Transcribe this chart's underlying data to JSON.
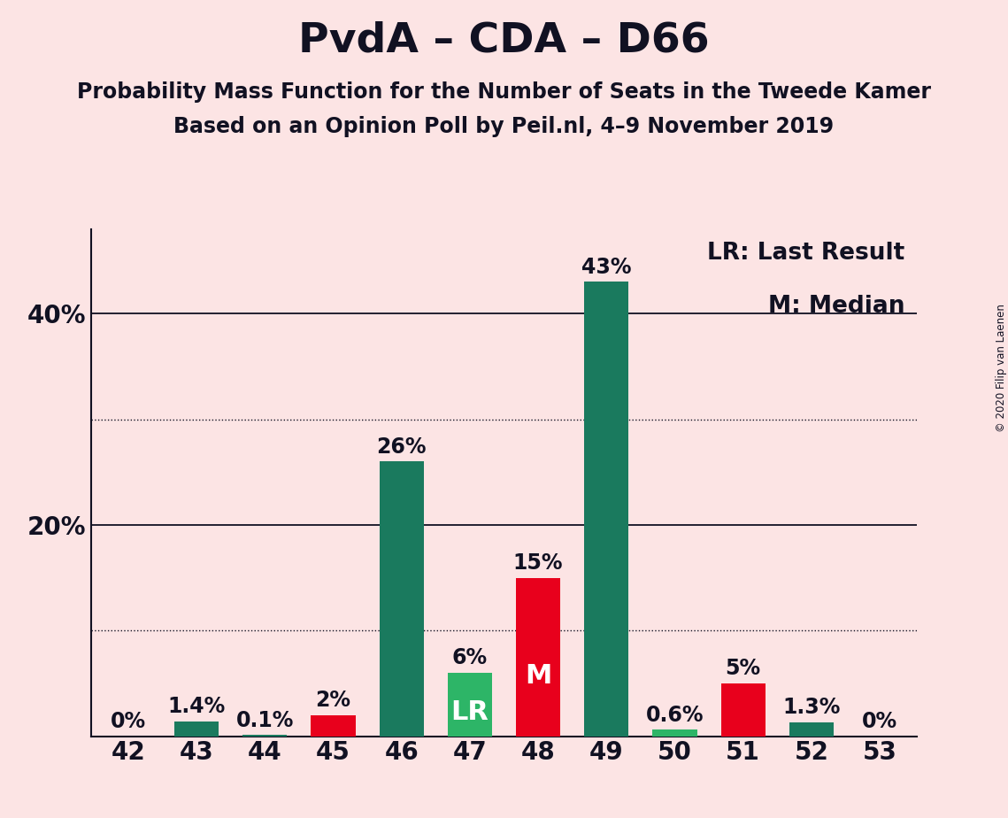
{
  "title": "PvdA – CDA – D66",
  "subtitle1": "Probability Mass Function for the Number of Seats in the Tweede Kamer",
  "subtitle2": "Based on an Opinion Poll by Peil.nl, 4–9 November 2019",
  "copyright": "© 2020 Filip van Laenen",
  "legend_lr": "LR: Last Result",
  "legend_m": "M: Median",
  "categories": [
    42,
    43,
    44,
    45,
    46,
    47,
    48,
    49,
    50,
    51,
    52,
    53
  ],
  "values": [
    0.0,
    1.4,
    0.1,
    2.0,
    26.0,
    6.0,
    15.0,
    43.0,
    0.6,
    5.0,
    1.3,
    0.0
  ],
  "labels": [
    "0%",
    "1.4%",
    "0.1%",
    "2%",
    "26%",
    "6%",
    "15%",
    "43%",
    "0.6%",
    "5%",
    "1.3%",
    "0%"
  ],
  "bar_colors": [
    "#1a7a5e",
    "#1a7a5e",
    "#1a7a5e",
    "#e8001c",
    "#1a7a5e",
    "#2db567",
    "#e8001c",
    "#1a7a5e",
    "#2db567",
    "#e8001c",
    "#1a7a5e",
    "#1a7a5e"
  ],
  "lr_index": 5,
  "median_index": 6,
  "background_color": "#fce4e4",
  "ylim": [
    0,
    48
  ],
  "yticks": [
    20,
    40
  ],
  "ytick_labels": [
    "20%",
    "40%"
  ],
  "grid_solid": [
    20,
    40
  ],
  "grid_dotted": [
    10,
    30
  ],
  "bar_width": 0.65,
  "title_fontsize": 34,
  "subtitle_fontsize": 17,
  "label_fontsize": 17,
  "tick_fontsize": 20,
  "legend_fontsize": 19,
  "inner_label_fontsize": 22
}
